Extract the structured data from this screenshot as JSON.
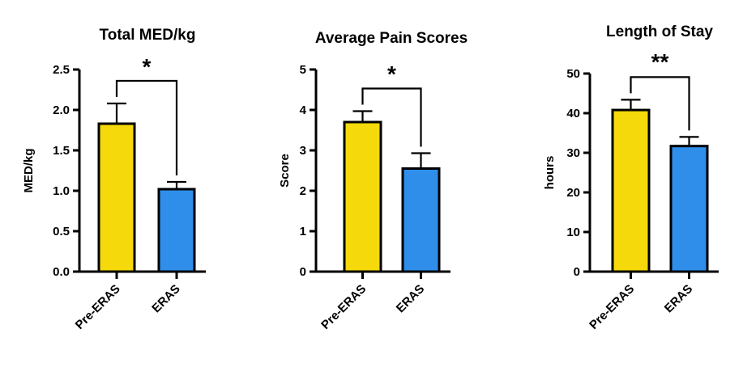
{
  "chart_data": [
    {
      "type": "bar",
      "title": "Total MED/kg",
      "ylabel": "MED/kg",
      "categories": [
        "Pre-ERAS",
        "ERAS"
      ],
      "values": [
        1.83,
        1.02
      ],
      "errors": [
        0.25,
        0.09
      ],
      "colors": [
        "#F5D90A",
        "#2F8EEA"
      ],
      "ylim": [
        0,
        2.5
      ],
      "yticks": [
        0.0,
        0.5,
        1.0,
        1.5,
        2.0,
        2.5
      ],
      "ytick_labels": [
        "0.0",
        "0.5",
        "1.0",
        "1.5",
        "2.0",
        "2.5"
      ],
      "significance": "*"
    },
    {
      "type": "bar",
      "title": "Average Pain Scores",
      "ylabel": "Score",
      "categories": [
        "Pre-ERAS",
        "ERAS"
      ],
      "values": [
        3.7,
        2.55
      ],
      "errors": [
        0.27,
        0.38
      ],
      "colors": [
        "#F5D90A",
        "#2F8EEA"
      ],
      "ylim": [
        0,
        5
      ],
      "yticks": [
        0,
        1,
        2,
        3,
        4,
        5
      ],
      "ytick_labels": [
        "0",
        "1",
        "2",
        "3",
        "4",
        "5"
      ],
      "significance": "*"
    },
    {
      "type": "bar",
      "title": "Length of Stay",
      "ylabel": "hours",
      "categories": [
        "Pre-ERAS",
        "ERAS"
      ],
      "values": [
        40.8,
        31.7
      ],
      "errors": [
        2.6,
        2.3
      ],
      "colors": [
        "#F5D90A",
        "#2F8EEA"
      ],
      "ylim": [
        0,
        50
      ],
      "yticks": [
        0,
        10,
        20,
        30,
        40,
        50
      ],
      "ytick_labels": [
        "0",
        "10",
        "20",
        "30",
        "40",
        "50"
      ],
      "significance": "**"
    }
  ]
}
